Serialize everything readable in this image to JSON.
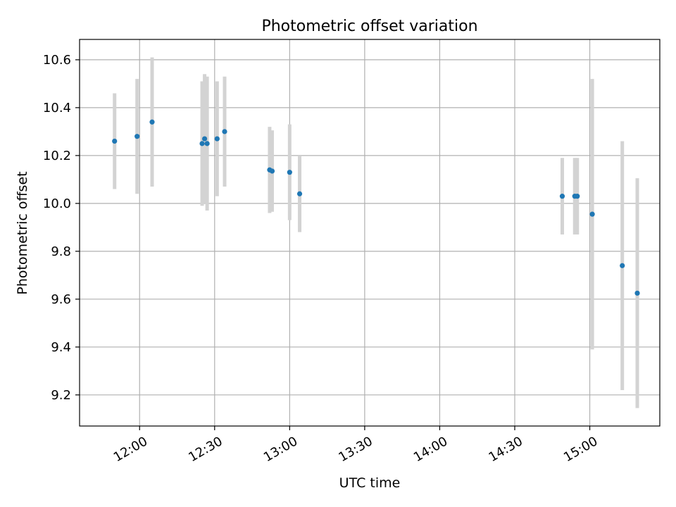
{
  "chart_data": {
    "type": "scatter",
    "title": "Photometric offset variation",
    "xlabel": "UTC time",
    "ylabel": "Photometric offset",
    "x_ticks": [
      "12:00",
      "12:30",
      "13:00",
      "13:30",
      "14:00",
      "14:30",
      "15:00"
    ],
    "y_ticks": [
      "9.2",
      "9.4",
      "9.6",
      "9.8",
      "10.0",
      "10.2",
      "10.4",
      "10.6"
    ],
    "xlim": [
      "11:36",
      "15:28"
    ],
    "ylim": [
      9.07,
      10.685
    ],
    "grid": true,
    "colors": {
      "point": "#1f77b4",
      "errorbar": "#d3d3d3",
      "grid": "#b0b0b0"
    },
    "points": [
      {
        "x": "11:50",
        "y": 10.26,
        "err": 0.2
      },
      {
        "x": "11:59",
        "y": 10.28,
        "err": 0.24
      },
      {
        "x": "12:05",
        "y": 10.34,
        "err": 0.27
      },
      {
        "x": "12:25",
        "y": 10.25,
        "err": 0.26
      },
      {
        "x": "12:26",
        "y": 10.27,
        "err": 0.27
      },
      {
        "x": "12:27",
        "y": 10.25,
        "err": 0.28
      },
      {
        "x": "12:31",
        "y": 10.27,
        "err": 0.24
      },
      {
        "x": "12:34",
        "y": 10.3,
        "err": 0.23
      },
      {
        "x": "12:52",
        "y": 10.14,
        "err": 0.18
      },
      {
        "x": "12:53",
        "y": 10.135,
        "err": 0.17
      },
      {
        "x": "13:00",
        "y": 10.13,
        "err": 0.2
      },
      {
        "x": "13:04",
        "y": 10.04,
        "err": 0.16
      },
      {
        "x": "14:49",
        "y": 10.03,
        "err": 0.16
      },
      {
        "x": "14:54",
        "y": 10.03,
        "err": 0.16
      },
      {
        "x": "14:55",
        "y": 10.03,
        "err": 0.16
      },
      {
        "x": "15:01",
        "y": 9.955,
        "err": 0.565
      },
      {
        "x": "15:13",
        "y": 9.74,
        "err": 0.52
      },
      {
        "x": "15:19",
        "y": 9.625,
        "err": 0.48
      }
    ]
  }
}
